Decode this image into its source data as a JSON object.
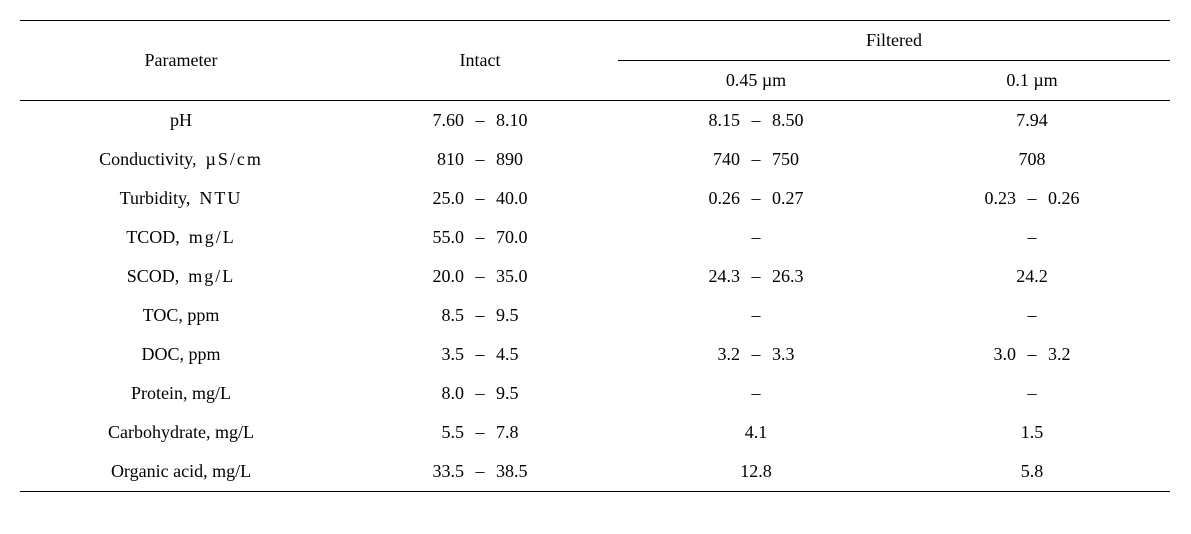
{
  "table": {
    "type": "table",
    "background_color": "#ffffff",
    "text_color": "#000000",
    "border_color": "#000000",
    "font_family_serif": "Times New Roman",
    "font_size_pt": 14,
    "dash_char": "–",
    "headers": {
      "parameter": "Parameter",
      "intact": "Intact",
      "filtered": "Filtered",
      "filtered_sub": [
        "0.45 µm",
        "0.1 µm"
      ]
    },
    "column_widths_pct": [
      28,
      24,
      24,
      24
    ],
    "rows": [
      {
        "param": "pH",
        "unit": "",
        "intact": {
          "type": "range",
          "lo": "7.60",
          "hi": "8.10"
        },
        "f045": {
          "type": "range",
          "lo": "8.15",
          "hi": "8.50"
        },
        "f01": {
          "type": "single",
          "val": "7.94"
        }
      },
      {
        "param": "Conductivity,",
        "unit": "µS/cm",
        "intact": {
          "type": "range",
          "lo": "810",
          "hi": "890"
        },
        "f045": {
          "type": "range",
          "lo": "740",
          "hi": "750"
        },
        "f01": {
          "type": "single",
          "val": "708"
        }
      },
      {
        "param": "Turbidity,",
        "unit": "NTU",
        "intact": {
          "type": "range",
          "lo": "25.0",
          "hi": "40.0"
        },
        "f045": {
          "type": "range",
          "lo": "0.26",
          "hi": "0.27"
        },
        "f01": {
          "type": "range",
          "lo": "0.23",
          "hi": "0.26"
        }
      },
      {
        "param": "TCOD,",
        "unit": "mg/L",
        "intact": {
          "type": "range",
          "lo": "55.0",
          "hi": "70.0"
        },
        "f045": {
          "type": "empty"
        },
        "f01": {
          "type": "empty"
        }
      },
      {
        "param": "SCOD,",
        "unit": "mg/L",
        "intact": {
          "type": "range",
          "lo": "20.0",
          "hi": "35.0"
        },
        "f045": {
          "type": "range",
          "lo": "24.3",
          "hi": "26.3"
        },
        "f01": {
          "type": "single",
          "val": "24.2"
        }
      },
      {
        "param": "TOC, ppm",
        "unit": "",
        "intact": {
          "type": "range",
          "lo": "8.5",
          "hi": "9.5"
        },
        "f045": {
          "type": "empty"
        },
        "f01": {
          "type": "empty"
        }
      },
      {
        "param": "DOC, ppm",
        "unit": "",
        "intact": {
          "type": "range",
          "lo": "3.5",
          "hi": "4.5"
        },
        "f045": {
          "type": "range",
          "lo": "3.2",
          "hi": "3.3"
        },
        "f01": {
          "type": "range",
          "lo": "3.0",
          "hi": "3.2"
        }
      },
      {
        "param": "Protein, mg/L",
        "unit": "",
        "intact": {
          "type": "range",
          "lo": "8.0",
          "hi": "9.5"
        },
        "f045": {
          "type": "empty"
        },
        "f01": {
          "type": "empty"
        }
      },
      {
        "param": "Carbohydrate, mg/L",
        "unit": "",
        "intact": {
          "type": "range",
          "lo": "5.5",
          "hi": "7.8"
        },
        "f045": {
          "type": "single",
          "val": "4.1"
        },
        "f01": {
          "type": "single",
          "val": "1.5"
        }
      },
      {
        "param": "Organic acid, mg/L",
        "unit": "",
        "intact": {
          "type": "range",
          "lo": "33.5",
          "hi": "38.5"
        },
        "f045": {
          "type": "single",
          "val": "12.8"
        },
        "f01": {
          "type": "single",
          "val": "5.8"
        }
      }
    ]
  }
}
